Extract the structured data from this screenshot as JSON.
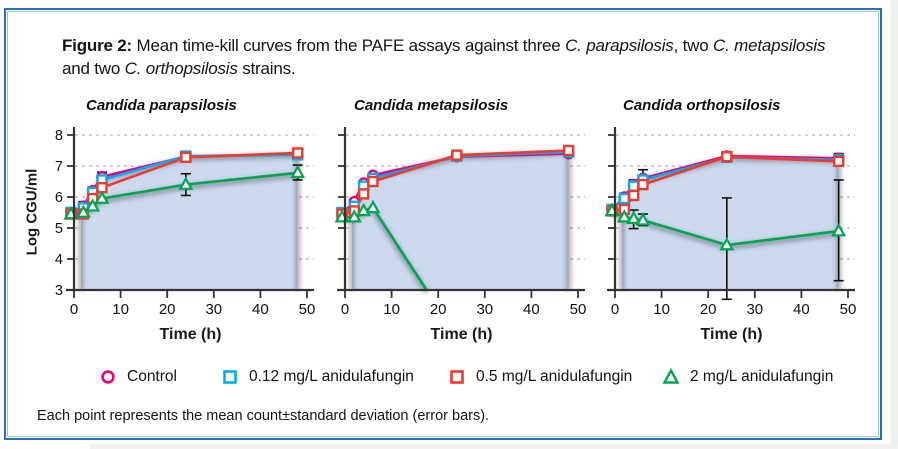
{
  "figure": {
    "border_color": "#2171bd",
    "title_segments": [
      {
        "text": "Figure 2:",
        "bold": true
      },
      {
        "text": " Mean time-kill curves from the PAFE assays against three "
      },
      {
        "text": "C. parapsilosis",
        "italic": true
      },
      {
        "text": ", two "
      },
      {
        "text": "C. metapsilosis",
        "italic": true
      },
      {
        "text": " and two "
      },
      {
        "text": "C. orthopsilosis",
        "italic": true
      },
      {
        "text": " strains."
      }
    ],
    "caption": "Each point represents the mean count±standard deviation (error bars)."
  },
  "legend": {
    "position": "bottom",
    "items": [
      {
        "label": "Control",
        "marker": "circle",
        "color": "#e6007d"
      },
      {
        "label": "0.12 mg/L anidulafungin",
        "marker": "square",
        "color": "#00adef"
      },
      {
        "label": "0.5 mg/L anidulafungin",
        "marker": "square",
        "color": "#f2392c"
      },
      {
        "label": "2 mg/L anidulafungin",
        "marker": "triangle",
        "color": "#00a651"
      }
    ]
  },
  "chart_data": [
    {
      "type": "line",
      "title": "Candida parapsilosis",
      "xlabel": "Time (h)",
      "ylabel": "Log CGU/ml",
      "x": [
        0,
        2,
        4,
        6,
        24,
        48
      ],
      "xticks": [
        0,
        10,
        20,
        30,
        40,
        50
      ],
      "yticks": [
        3,
        4,
        5,
        6,
        7,
        8
      ],
      "xlim": [
        0,
        50
      ],
      "ylim": [
        3,
        8
      ],
      "grid": "dashed-horizontal",
      "grid_color": "#b3b3b3",
      "y_tick_labels": true,
      "fill": {
        "color": "#ccd9ee",
        "start_t": 1.5,
        "end_t": 48
      },
      "shadow_color": "#40454d",
      "series": [
        {
          "name": "Control",
          "marker": "circle",
          "color": "#e6007d",
          "values": [
            5.5,
            5.7,
            6.2,
            6.65,
            7.3,
            7.38
          ]
        },
        {
          "name": "0.12 mg/L anidulafungin",
          "marker": "square",
          "color": "#00adef",
          "values": [
            5.5,
            5.65,
            6.15,
            6.55,
            7.32,
            7.36
          ]
        },
        {
          "name": "0.5 mg/L anidulafungin",
          "marker": "square",
          "color": "#f2392c",
          "values": [
            5.45,
            5.45,
            5.95,
            6.3,
            7.28,
            7.42
          ]
        },
        {
          "name": "2 mg/L anidulafungin",
          "marker": "triangle",
          "color": "#00a651",
          "values": [
            5.45,
            5.5,
            5.7,
            5.95,
            6.4,
            6.78
          ]
        }
      ],
      "error_bars": [
        {
          "t": 2,
          "lo": 5.5,
          "hi": 5.85
        },
        {
          "t": 4,
          "lo": 5.95,
          "hi": 6.32
        },
        {
          "t": 6,
          "lo": 6.45,
          "hi": 6.8
        },
        {
          "t": 24,
          "lo": 6.05,
          "hi": 6.75
        },
        {
          "t": 48,
          "lo": 6.55,
          "hi": 7.03
        }
      ]
    },
    {
      "type": "line",
      "title": "Candida metapsilosis",
      "xlabel": "Time (h)",
      "ylabel": "",
      "x": [
        0,
        2,
        4,
        6,
        24,
        48
      ],
      "xticks": [
        0,
        10,
        20,
        30,
        40,
        50
      ],
      "yticks": [
        3,
        4,
        5,
        6,
        7,
        8
      ],
      "xlim": [
        0,
        50
      ],
      "ylim": [
        3,
        8
      ],
      "grid": "dashed-horizontal",
      "grid_color": "#b3b3b3",
      "y_tick_labels": false,
      "fill": {
        "color": "#ccd9ee",
        "start_t": 1.5,
        "end_t": 48
      },
      "shadow_color": "#40454d",
      "series": [
        {
          "name": "Control",
          "marker": "circle",
          "color": "#e6007d",
          "values": [
            5.45,
            5.85,
            6.45,
            6.7,
            7.3,
            7.4
          ]
        },
        {
          "name": "0.12 mg/L anidulafungin",
          "marker": "square",
          "color": "#00adef",
          "values": [
            5.5,
            5.7,
            6.35,
            6.6,
            7.32,
            7.45
          ]
        },
        {
          "name": "0.5 mg/L anidulafungin",
          "marker": "square",
          "color": "#f2392c",
          "values": [
            5.45,
            5.55,
            6.1,
            6.5,
            7.35,
            7.5
          ]
        },
        {
          "name": "2 mg/L anidulafungin",
          "marker": "triangle",
          "color": "#00a651",
          "values": [
            5.35,
            5.35,
            5.55,
            5.65,
            null,
            null
          ],
          "tail": [
            17.5,
            3.0
          ],
          "note": "declines below detection limit after 6 h"
        }
      ],
      "error_bars": []
    },
    {
      "type": "line",
      "title": "Candida orthopsilosis",
      "xlabel": "Time (h)",
      "ylabel": "",
      "x": [
        0,
        2,
        4,
        6,
        24,
        48
      ],
      "xticks": [
        0,
        10,
        20,
        30,
        40,
        50
      ],
      "yticks": [
        3,
        4,
        5,
        6,
        7,
        8
      ],
      "xlim": [
        0,
        50
      ],
      "ylim": [
        3,
        8
      ],
      "grid": "dashed-horizontal",
      "grid_color": "#b3b3b3",
      "y_tick_labels": false,
      "fill": {
        "color": "#ccd9ee",
        "start_t": 1.5,
        "end_t": 48
      },
      "shadow_color": "#40454d",
      "series": [
        {
          "name": "Control",
          "marker": "circle",
          "color": "#e6007d",
          "values": [
            5.6,
            6.0,
            6.4,
            6.6,
            7.32,
            7.25
          ]
        },
        {
          "name": "0.12 mg/L anidulafungin",
          "marker": "square",
          "color": "#00adef",
          "values": [
            5.6,
            5.95,
            6.35,
            6.55,
            7.28,
            7.2
          ]
        },
        {
          "name": "0.5 mg/L anidulafungin",
          "marker": "square",
          "color": "#f2392c",
          "values": [
            5.55,
            5.6,
            6.05,
            6.4,
            7.3,
            7.15
          ]
        },
        {
          "name": "2 mg/L anidulafungin",
          "marker": "triangle",
          "color": "#00a651",
          "values": [
            5.55,
            5.35,
            5.3,
            5.25,
            4.45,
            4.9
          ]
        }
      ],
      "error_bars": [
        {
          "t": 2,
          "lo": 5.7,
          "hi": 6.12
        },
        {
          "t": 4,
          "lo": 6.1,
          "hi": 6.55
        },
        {
          "t": 6,
          "lo": 6.4,
          "hi": 6.88
        },
        {
          "t": 4,
          "lo": 4.98,
          "hi": 5.58
        },
        {
          "t": 6,
          "lo": 5.08,
          "hi": 5.45
        },
        {
          "t": 24,
          "lo": 2.7,
          "hi": 5.97
        },
        {
          "t": 48,
          "lo": 3.3,
          "hi": 6.55
        },
        {
          "t": 48,
          "lo": 7.0,
          "hi": 7.4
        }
      ]
    }
  ]
}
